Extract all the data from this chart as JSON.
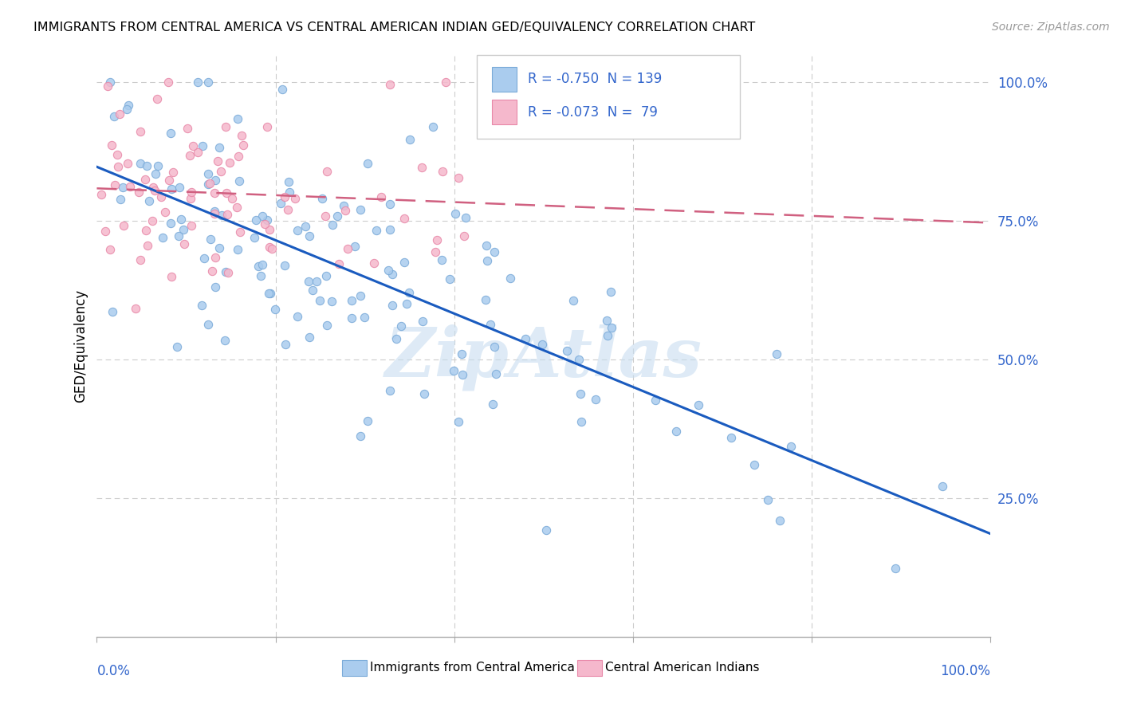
{
  "title": "IMMIGRANTS FROM CENTRAL AMERICA VS CENTRAL AMERICAN INDIAN GED/EQUIVALENCY CORRELATION CHART",
  "source": "Source: ZipAtlas.com",
  "ylabel": "GED/Equivalency",
  "legend_text1": "R = -0.750  N = 139",
  "legend_text2": "R = -0.073  N =  79",
  "blue_fill": "#aaccee",
  "blue_edge": "#7aaad8",
  "blue_line_color": "#1a5bbf",
  "pink_fill": "#f5b8cc",
  "pink_edge": "#e888a8",
  "pink_line_color": "#d06080",
  "watermark": "ZipAtlas",
  "watermark_color": "#c8ddf0",
  "grid_color": "#cccccc",
  "ytick_color": "#3366cc",
  "xtick_color": "#3366cc",
  "title_fontsize": 11.5,
  "source_fontsize": 10,
  "tick_fontsize": 12,
  "ylabel_fontsize": 12,
  "legend_fontsize": 12,
  "blue_r": -0.75,
  "blue_n": 139,
  "pink_r": -0.073,
  "pink_n": 79,
  "blue_seed": 42,
  "pink_seed": 17
}
